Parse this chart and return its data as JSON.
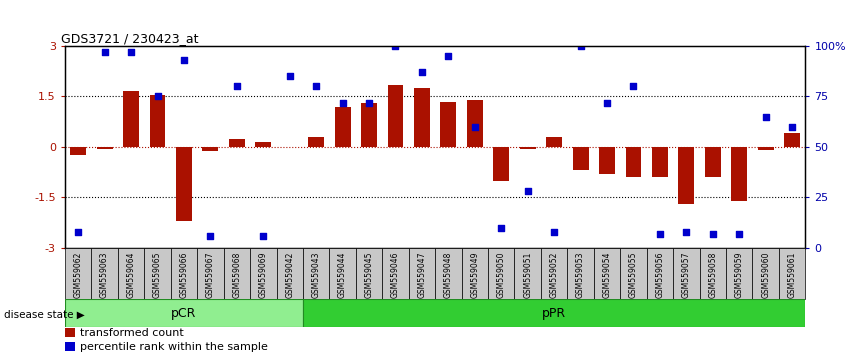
{
  "title": "GDS3721 / 230423_at",
  "samples": [
    "GSM559062",
    "GSM559063",
    "GSM559064",
    "GSM559065",
    "GSM559066",
    "GSM559067",
    "GSM559068",
    "GSM559069",
    "GSM559042",
    "GSM559043",
    "GSM559044",
    "GSM559045",
    "GSM559046",
    "GSM559047",
    "GSM559048",
    "GSM559049",
    "GSM559050",
    "GSM559051",
    "GSM559052",
    "GSM559053",
    "GSM559054",
    "GSM559055",
    "GSM559056",
    "GSM559057",
    "GSM559058",
    "GSM559059",
    "GSM559060",
    "GSM559061"
  ],
  "bar_values": [
    -0.25,
    -0.05,
    1.65,
    1.55,
    -2.2,
    -0.12,
    0.25,
    0.15,
    0.0,
    0.3,
    1.2,
    1.3,
    1.85,
    1.75,
    1.35,
    1.4,
    -1.0,
    -0.05,
    0.3,
    -0.7,
    -0.8,
    -0.9,
    -0.9,
    -1.7,
    -0.9,
    -1.6,
    -0.1,
    0.4
  ],
  "percentile_values": [
    8,
    97,
    97,
    75,
    93,
    6,
    80,
    6,
    85,
    80,
    72,
    72,
    100,
    87,
    95,
    60,
    10,
    28,
    8,
    100,
    72,
    80,
    7,
    8,
    7,
    7,
    65,
    60
  ],
  "pcr_count": 9,
  "ppr_count": 19,
  "ylim": [
    -3,
    3
  ],
  "yticks": [
    -3,
    -1.5,
    0,
    1.5,
    3
  ],
  "right_yticks": [
    0,
    25,
    50,
    75,
    100
  ],
  "right_yticklabels": [
    "0",
    "25",
    "50",
    "75",
    "100%"
  ],
  "bar_color": "#AA1100",
  "scatter_color": "#0000CC",
  "pcr_color": "#90EE90",
  "ppr_color": "#32CD32",
  "label_box_color": "#C8C8C8",
  "legend_bar_label": "transformed count",
  "legend_scatter_label": "percentile rank within the sample",
  "disease_state_label": "disease state",
  "pcr_label": "pCR",
  "ppr_label": "pPR"
}
